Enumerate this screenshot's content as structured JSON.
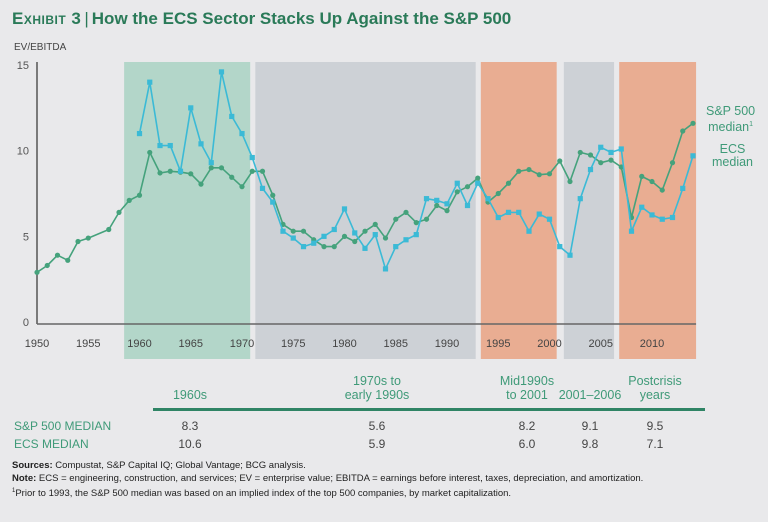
{
  "header": {
    "exhibit_label": "Exhibit 3",
    "separator": "|",
    "title": "How the ECS Sector Stacks Up Against the S&P 500"
  },
  "chart_data": {
    "type": "line",
    "title": "How the ECS Sector Stacks Up Against the S&P 500",
    "ylabel": "EV/EBITDA",
    "xlabel": "",
    "xlim": [
      1950,
      2014
    ],
    "ylim": [
      0,
      15
    ],
    "x_ticks": [
      1950,
      1955,
      1960,
      1965,
      1970,
      1975,
      1980,
      1985,
      1990,
      1995,
      2000,
      2005,
      2010
    ],
    "y_ticks": [
      0,
      5,
      10,
      15
    ],
    "grid": false,
    "legend_placement": "right",
    "shaded_periods": [
      {
        "name": "1960s",
        "start": 1958.5,
        "end": 1970.8,
        "color": "#b3d6c9"
      },
      {
        "name": "1970s to early 1990s",
        "start": 1971.3,
        "end": 1992.8,
        "color": "#cdd1d6"
      },
      {
        "name": "Mid1990s to 2001",
        "start": 1993.3,
        "end": 2000.7,
        "color": "#e9ad92"
      },
      {
        "name": "2001–2006",
        "start": 2001.4,
        "end": 2006.3,
        "color": "#cdd1d6"
      },
      {
        "name": "Postcrisis years",
        "start": 2006.8,
        "end": 2014.3,
        "color": "#e9ad92"
      }
    ],
    "series": [
      {
        "name": "S&P 500 median",
        "legend_label": "S&P 500 median",
        "legend_sup": "1",
        "color": "#45a27c",
        "x": [
          1950,
          1951,
          1952,
          1953,
          1954,
          1955,
          1957,
          1958,
          1959,
          1960,
          1961,
          1962,
          1963,
          1964,
          1965,
          1966,
          1967,
          1968,
          1969,
          1970,
          1971,
          1972,
          1973,
          1974,
          1975,
          1976,
          1977,
          1978,
          1979,
          1980,
          1981,
          1982,
          1983,
          1984,
          1985,
          1986,
          1987,
          1988,
          1989,
          1990,
          1991,
          1992,
          1993,
          1994,
          1995,
          1996,
          1997,
          1998,
          1999,
          2000,
          2001,
          2002,
          2003,
          2004,
          2005,
          2006,
          2007,
          2008,
          2009,
          2010,
          2011,
          2012,
          2013,
          2014
        ],
        "values": [
          2.9,
          3.3,
          3.9,
          3.6,
          4.7,
          4.9,
          5.4,
          6.4,
          7.1,
          7.4,
          9.9,
          8.7,
          8.8,
          8.75,
          8.65,
          8.05,
          9.0,
          9.0,
          8.45,
          7.9,
          8.8,
          8.8,
          7.4,
          5.7,
          5.3,
          5.3,
          4.8,
          4.4,
          4.4,
          5.0,
          4.7,
          5.3,
          5.7,
          4.9,
          6.0,
          6.4,
          5.8,
          6.0,
          6.8,
          6.5,
          7.6,
          7.9,
          8.4,
          7.0,
          7.5,
          8.1,
          8.8,
          8.9,
          8.6,
          8.65,
          9.4,
          8.2,
          9.9,
          9.75,
          9.3,
          9.45,
          9.05,
          6.1,
          8.5,
          8.2,
          7.7,
          9.3,
          11.15,
          11.6
        ]
      },
      {
        "name": "ECS median",
        "legend_label": "ECS median",
        "color": "#3bbad6",
        "x": [
          1960,
          1961,
          1962,
          1963,
          1964,
          1965,
          1966,
          1967,
          1968,
          1969,
          1970,
          1971,
          1972,
          1973,
          1974,
          1975,
          1976,
          1977,
          1978,
          1979,
          1980,
          1981,
          1982,
          1983,
          1984,
          1985,
          1986,
          1987,
          1988,
          1989,
          1990,
          1991,
          1992,
          1993,
          1994,
          1995,
          1996,
          1997,
          1998,
          1999,
          2000,
          2001,
          2002,
          2003,
          2004,
          2005,
          2006,
          2007,
          2008,
          2009,
          2010,
          2011,
          2012,
          2013,
          2014
        ],
        "values": [
          11.0,
          14.0,
          10.3,
          10.3,
          8.8,
          12.5,
          10.4,
          9.3,
          14.6,
          12.0,
          11.0,
          9.6,
          7.8,
          7.0,
          5.3,
          4.9,
          4.4,
          4.6,
          5.0,
          5.4,
          6.6,
          5.2,
          4.3,
          5.1,
          3.1,
          4.4,
          4.8,
          5.1,
          7.2,
          7.1,
          6.9,
          8.1,
          6.8,
          8.1,
          7.2,
          6.1,
          6.4,
          6.4,
          5.3,
          6.3,
          6.0,
          4.4,
          3.9,
          7.2,
          8.9,
          10.2,
          9.9,
          10.1,
          5.3,
          6.7,
          6.25,
          6.0,
          6.1,
          7.8,
          9.7
        ]
      }
    ]
  },
  "table": {
    "periods": [
      {
        "label_lines": [
          "1960s"
        ],
        "sp500": "8.3",
        "ecs": "10.6"
      },
      {
        "label_lines": [
          "1970s to",
          "early 1990s"
        ],
        "sp500": "5.6",
        "ecs": "5.9"
      },
      {
        "label_lines": [
          "Mid1990s",
          "to 2001"
        ],
        "sp500": "8.2",
        "ecs": "6.0"
      },
      {
        "label_lines": [
          "2001–2006"
        ],
        "sp500": "9.1",
        "ecs": "9.8"
      },
      {
        "label_lines": [
          "Postcrisis",
          "years"
        ],
        "sp500": "9.5",
        "ecs": "7.1"
      }
    ],
    "row_labels": {
      "sp500": "S&P 500 MEDIAN",
      "ecs": "ECS MEDIAN"
    }
  },
  "notes": {
    "sources_label": "Sources:",
    "sources_text": " Compustat, S&P Capital IQ; Global Vantage; BCG analysis.",
    "note_label": "Note:",
    "note_text": " ECS = engineering, construction, and services; EV = enterprise value; EBITDA = earnings before interest, taxes, depreciation, and amortization.",
    "footnote_mark": "1",
    "footnote_text": "Prior to 1993, the S&P 500 median was based on an implied index of the top 500 companies, by market capitalization."
  }
}
